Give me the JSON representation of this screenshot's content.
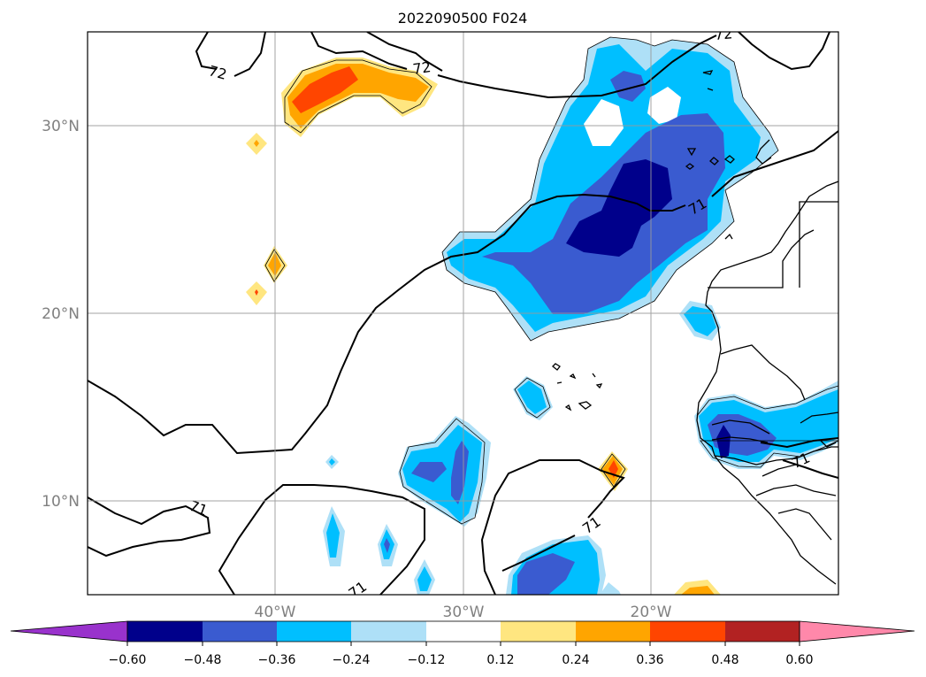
{
  "title": "2022090500 F024",
  "lat_ticks": [
    "30°N",
    "20°N",
    "10°N"
  ],
  "lon_ticks": [
    "40°W",
    "30°W",
    "20°W"
  ],
  "contour_labels": [
    "72",
    "72",
    "72",
    "71",
    "71",
    "71",
    "71",
    "71"
  ],
  "colorbar": {
    "ticks": [
      "−0.60",
      "−0.48",
      "−0.36",
      "−0.24",
      "−0.12",
      "0.12",
      "0.24",
      "0.36",
      "0.48",
      "0.60"
    ],
    "colors": {
      "under": "#9932cc",
      "bins": [
        "#00008b",
        "#3a5bd0",
        "#00bfff",
        "#aee0f7",
        "#ffffff",
        "#ffe680",
        "#ffa500",
        "#ff4500",
        "#b22222"
      ],
      "over": "#ff88aa"
    }
  },
  "palette": {
    "dark_navy": "#00008b",
    "royal_blue": "#3a5bd0",
    "sky_blue": "#00bfff",
    "pale_blue": "#aee0f7",
    "pale_yellow": "#ffe680",
    "orange": "#ffa500",
    "red_orange": "#ff4500"
  }
}
